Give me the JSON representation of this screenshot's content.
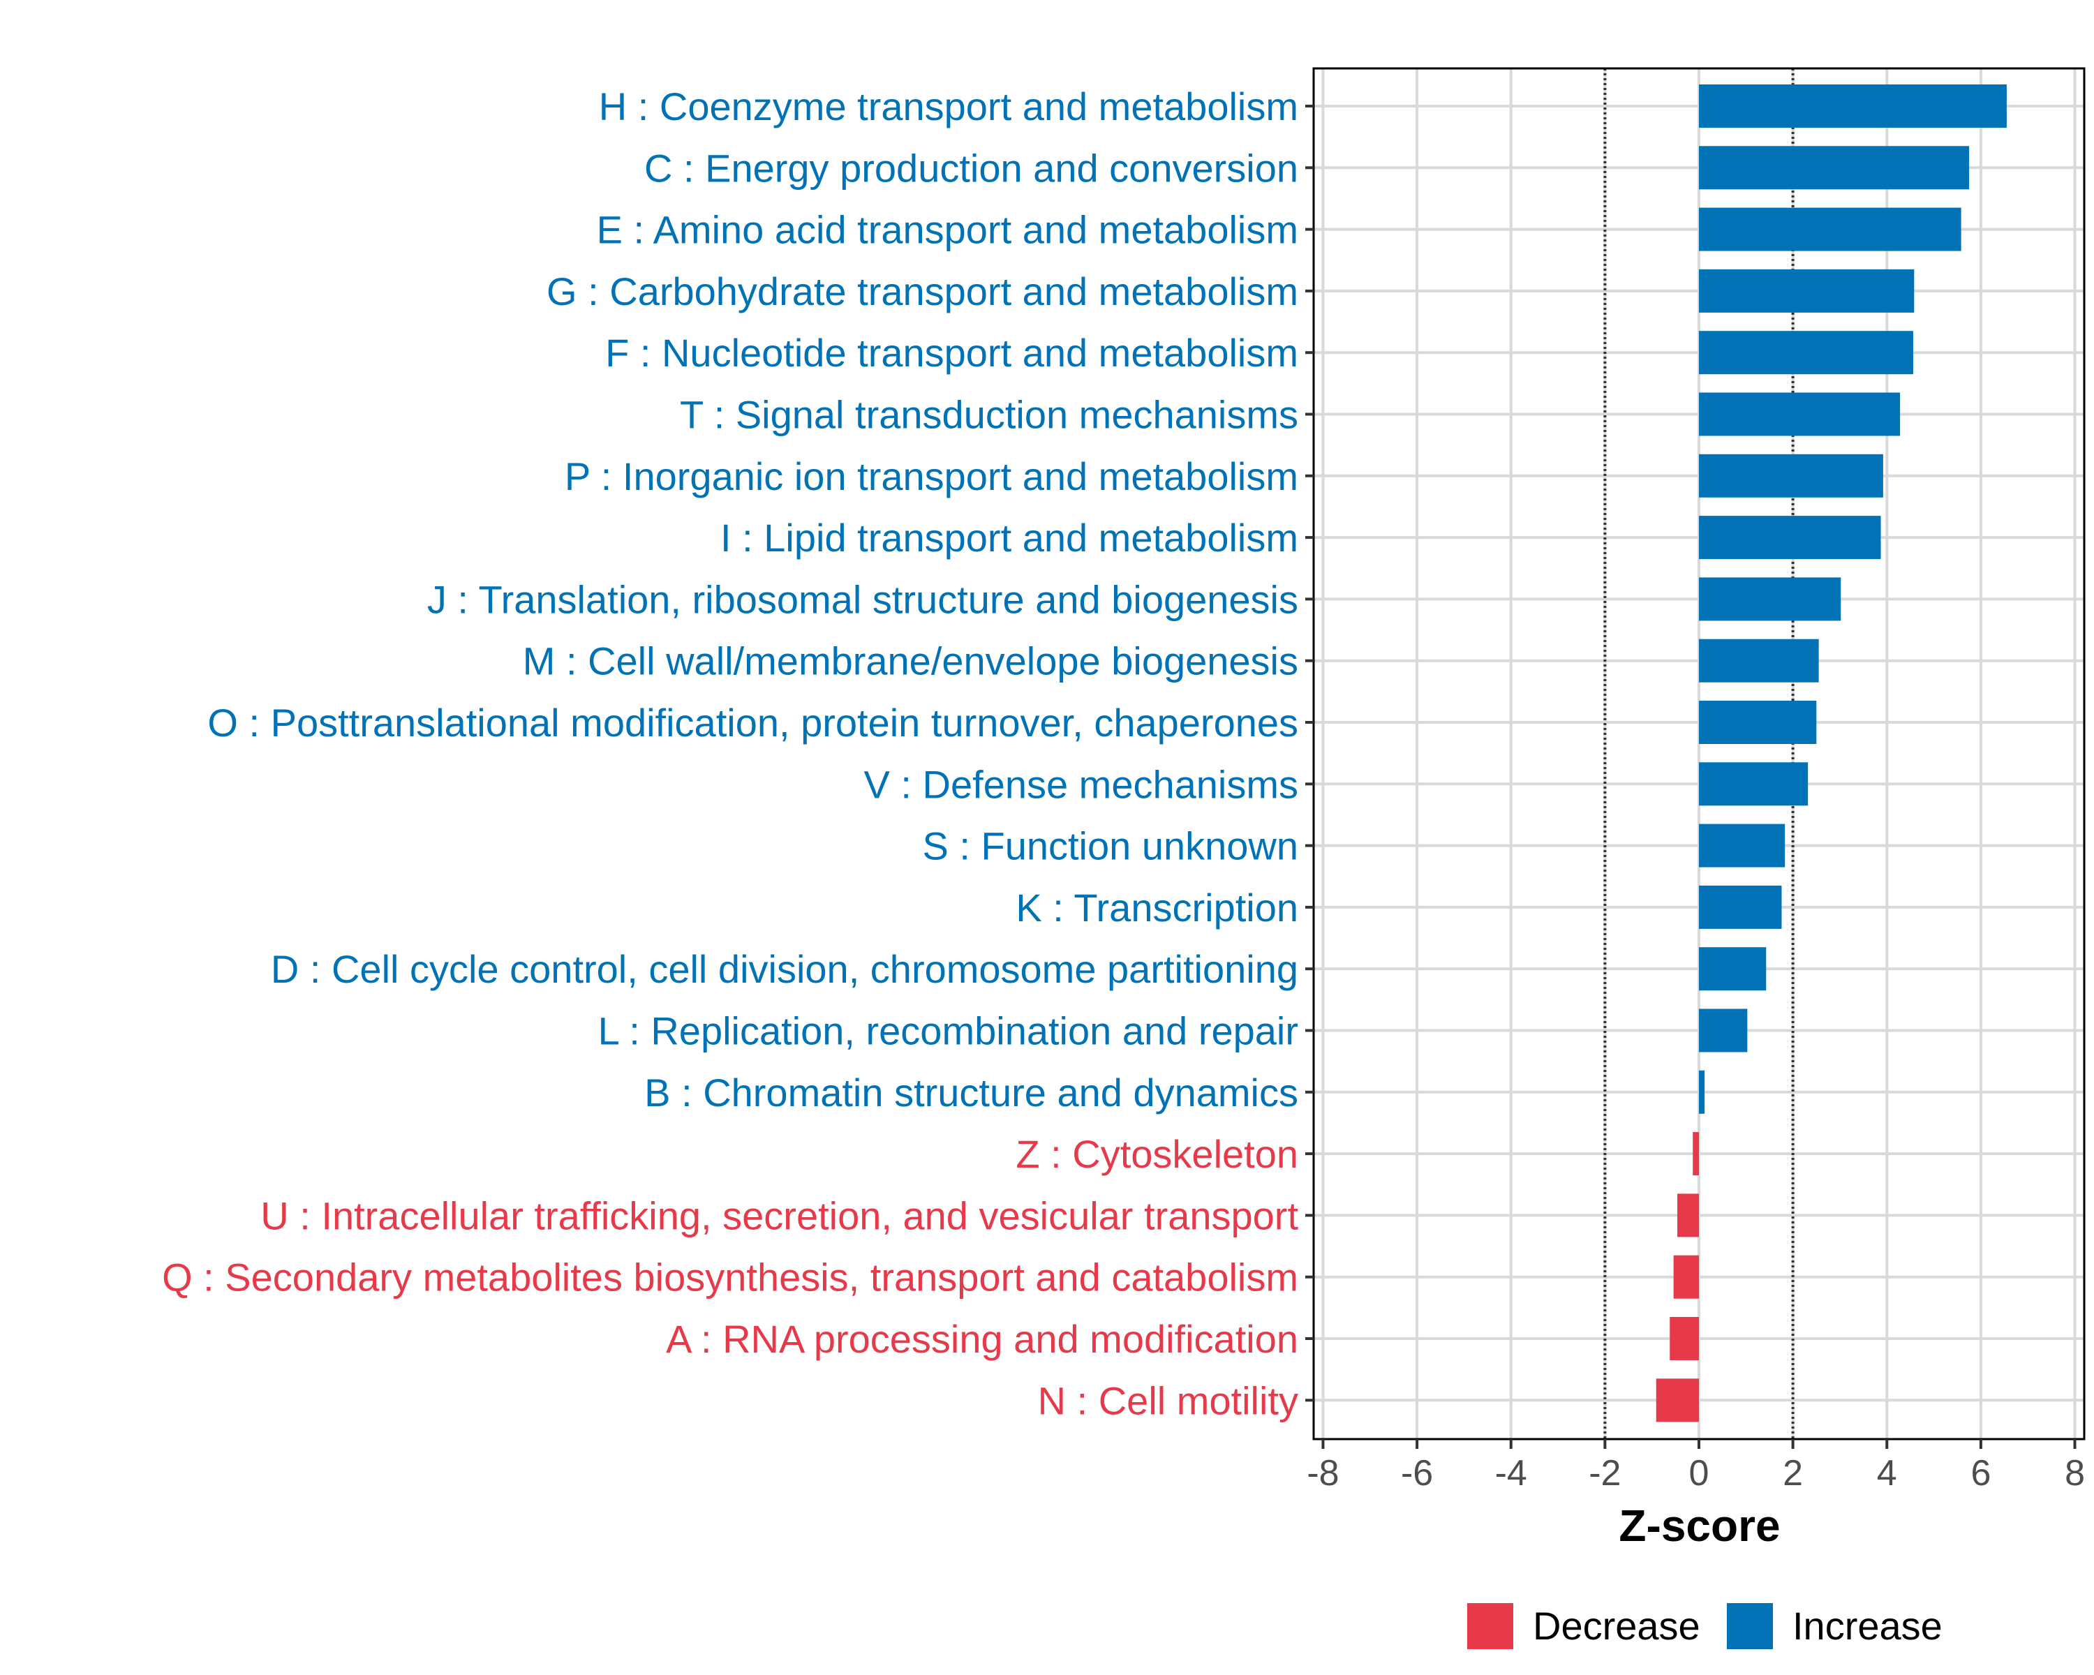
{
  "chart_data": {
    "type": "bar",
    "orientation": "horizontal",
    "title": "",
    "xlabel": "Z-score",
    "ylabel": "",
    "xlim": [
      -8.2,
      8.2
    ],
    "x_ticks": [
      -8,
      -6,
      -4,
      -2,
      0,
      2,
      4,
      6,
      8
    ],
    "x_tick_labels": [
      "-8",
      "-6",
      "-4",
      "-2",
      "0",
      "2",
      "4",
      "6",
      "8"
    ],
    "reference_lines": [
      -2,
      2
    ],
    "grid": true,
    "colors": {
      "Increase": "#0072B5",
      "Decrease": "#E63A4B"
    },
    "categories": [
      "H : Coenzyme transport and metabolism",
      "C : Energy production and conversion",
      "E : Amino acid transport and metabolism",
      "G : Carbohydrate transport and metabolism",
      "F : Nucleotide transport and metabolism",
      "T : Signal transduction mechanisms",
      "P : Inorganic ion transport and metabolism",
      "I : Lipid transport and metabolism",
      "J : Translation, ribosomal structure and biogenesis",
      "M : Cell wall/membrane/envelope biogenesis",
      "O : Posttranslational modification, protein turnover, chaperones",
      "V : Defense mechanisms",
      "S : Function unknown",
      "K : Transcription",
      "D : Cell cycle control, cell division, chromosome partitioning",
      "L : Replication, recombination and repair",
      "B : Chromatin structure and dynamics",
      "Z : Cytoskeleton",
      "U : Intracellular trafficking, secretion, and vesicular transport",
      "Q : Secondary metabolites biosynthesis, transport and catabolism",
      "A : RNA processing and modification",
      "N : Cell motility"
    ],
    "values": [
      6.55,
      5.75,
      5.58,
      4.58,
      4.56,
      4.28,
      3.92,
      3.87,
      3.02,
      2.55,
      2.5,
      2.32,
      1.83,
      1.76,
      1.43,
      1.03,
      0.12,
      -0.13,
      -0.46,
      -0.54,
      -0.62,
      -0.91
    ],
    "groups": [
      "Increase",
      "Increase",
      "Increase",
      "Increase",
      "Increase",
      "Increase",
      "Increase",
      "Increase",
      "Increase",
      "Increase",
      "Increase",
      "Increase",
      "Increase",
      "Increase",
      "Increase",
      "Increase",
      "Increase",
      "Decrease",
      "Decrease",
      "Decrease",
      "Decrease",
      "Decrease"
    ],
    "legend": {
      "position": "bottom",
      "entries": [
        "Decrease",
        "Increase"
      ]
    }
  }
}
